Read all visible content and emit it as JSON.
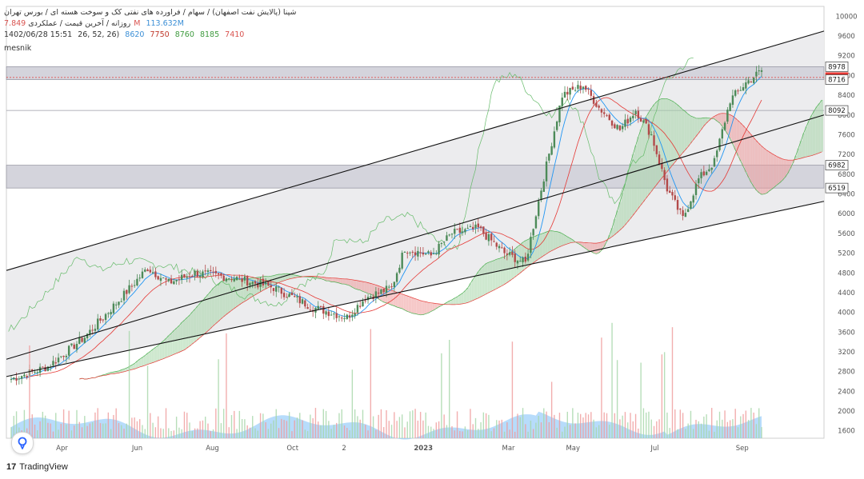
{
  "header": {
    "title": "شپنا (پالایش نفت اصفهان) / سهام / فراورده های نفتی کک و سوخت هسته ای / بورس تهران",
    "timeframe": "روزانه / آخرین قیمت / عملکردی",
    "volume_a": "7.849M",
    "volume_b": "113.632M",
    "datetime": "1402/06/28 15:51",
    "ichimoku_params": "26, 52, 26)",
    "ichimoku_values": [
      "8620",
      "7750",
      "8760",
      "8185",
      "7410"
    ],
    "author": "mesnik"
  },
  "branding": {
    "name": "TradingView",
    "logo": "tradingview-logo"
  },
  "chart_data": {
    "type": "candlestick",
    "x_ticks": [
      "Apr",
      "Jun",
      "Aug",
      "Oct",
      "2",
      "2023",
      "Mar",
      "May",
      "Jul",
      "Sep"
    ],
    "y_ticks": [
      1600,
      2000,
      2400,
      2800,
      3200,
      3600,
      4000,
      4400,
      4800,
      5200,
      5600,
      6000,
      6400,
      6800,
      7200,
      7600,
      8000,
      8400,
      8800,
      9200,
      9600,
      10000
    ],
    "ylim": [
      1450,
      10200
    ],
    "price_labels": [
      {
        "value": 8978,
        "label": "8978",
        "style": "gray"
      },
      {
        "value": 8760,
        "label": "8760",
        "style": "red"
      },
      {
        "value": 8716,
        "label": "8716",
        "style": "gray"
      },
      {
        "value": 8092,
        "label": "8092",
        "style": "gray"
      },
      {
        "value": 6982,
        "label": "6982",
        "style": "gray"
      },
      {
        "value": 6519,
        "label": "6519",
        "style": "gray"
      }
    ],
    "zones": [
      [
        8716,
        8978
      ],
      [
        6519,
        6982
      ]
    ],
    "hline": 8092,
    "channel": {
      "upper": [
        {
          "x": 0.0,
          "y": 4850
        },
        {
          "x": 1.0,
          "y": 9700
        }
      ],
      "middle": [
        {
          "x": 0.0,
          "y": 3050
        },
        {
          "x": 1.0,
          "y": 8000
        }
      ],
      "lower": [
        {
          "x": 0.0,
          "y": 2700
        },
        {
          "x": 1.0,
          "y": 6250
        }
      ]
    },
    "series_colors": {
      "up": "#26a69a",
      "down": "#ef5350",
      "tenkan": "#2196f3",
      "kijun": "#e57373",
      "chikou": "#66bb6a",
      "cloud_up": "#a5d6a7",
      "cloud_down": "#ef9a9a",
      "volume": "#90caf9"
    }
  }
}
